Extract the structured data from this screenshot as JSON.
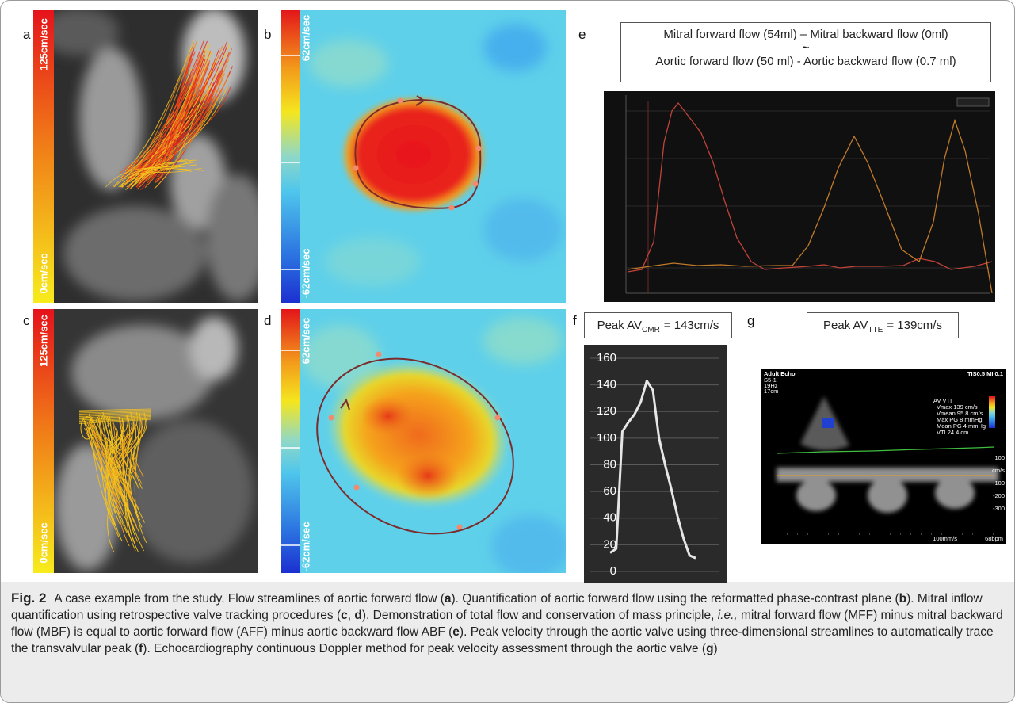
{
  "panels": {
    "a": {
      "label": "a",
      "scale_max": "125cm/sec",
      "scale_min": "0cm/sec"
    },
    "b": {
      "label": "b",
      "scale_max": "62cm/sec",
      "scale_min": "-62cm/sec"
    },
    "c": {
      "label": "c",
      "scale_max": "125cm/sec",
      "scale_min": "0cm/sec"
    },
    "d": {
      "label": "d",
      "scale_max": "62cm/sec",
      "scale_min": "-62cm/sec"
    },
    "e": {
      "label": "e",
      "equation": [
        "Mitral forward flow (54ml) – Mitral backward flow (0ml)",
        "~",
        "Aortic forward flow (50 ml) - Aortic backward flow (0.7 ml)"
      ]
    },
    "f": {
      "label": "f",
      "title_prefix": "Peak AV",
      "title_sub": "CMR",
      "title_suffix": "= 143cm/s",
      "chart": {
        "type": "line",
        "values": [
          14,
          17,
          105,
          112,
          118,
          127,
          143,
          136,
          100,
          80,
          62,
          42,
          25,
          12,
          10
        ],
        "color": "#e6e6e6",
        "ylim": [
          0,
          160
        ],
        "yticks": [
          0,
          20,
          40,
          60,
          80,
          100,
          120,
          140,
          160
        ],
        "grid": true
      }
    },
    "g": {
      "label": "g",
      "title_prefix": "Peak AV",
      "title_sub": "TTE",
      "title_suffix": "= 139cm/s",
      "echo_text": [
        "Adult Echo",
        "TIS0.5  MI 0.1",
        "S5-1",
        "19Hz",
        "17cm",
        "AV VTI",
        "Vmax  139 cm/s",
        "Vmean  95.8 cm/s",
        "Max PG  8 mmHg",
        "Mean PG  4 mmHg",
        "VTI  24.4 cm",
        "100",
        "cm/s",
        "-100",
        "-200",
        "-300",
        "100mm/s",
        "68bpm"
      ]
    }
  },
  "caption": {
    "label": "Fig. 2",
    "parts": [
      "A case example from the study. Flow streamlines of aortic forward flow (",
      "a",
      "). Quantification of aortic forward flow using the reformatted phase-contrast plane (",
      "b",
      "). Mitral inflow quantification using retrospective valve tracking procedures (",
      "c",
      ", ",
      "d",
      "). Demonstration of total flow and conservation of mass principle, ",
      "i.e.,",
      " mitral forward flow (MFF) minus mitral backward flow (MBF) is equal to aortic forward flow (AFF) minus aortic backward flow ABF (",
      "e",
      "). Peak velocity through the aortic valve using three-dimensional streamlines to automatically trace the transvalvular peak (",
      "f",
      "). Echocardiography continuous Doppler method for peak velocity assessment through the aortic valve (",
      "g",
      ")"
    ]
  }
}
